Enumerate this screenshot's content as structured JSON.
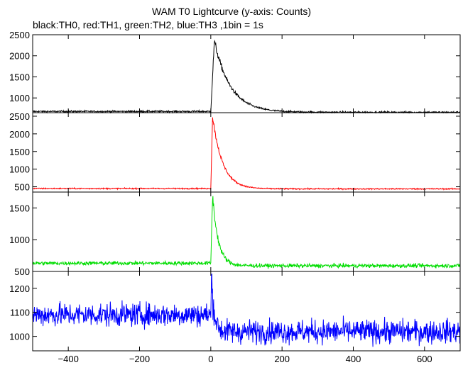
{
  "title": "WAM T0 Lightcurve (y-axis: Counts)",
  "subtitle": "black:TH0, red:TH1, green:TH2, blue:TH3 ,1bin = 1s",
  "chart_data": {
    "type": "line",
    "xlim": [
      -500,
      700
    ],
    "x_ticks": [
      -400,
      -200,
      0,
      200,
      400,
      600
    ],
    "x_tick_labels": [
      "−400",
      "−200",
      "0",
      "200",
      "400",
      "600"
    ],
    "bin_seconds": 1,
    "grid": false,
    "panels": [
      {
        "series": "TH0",
        "color": "#000000",
        "ylim": [
          650,
          2500
        ],
        "y_ticks": [
          1000,
          1500,
          2000,
          2500
        ],
        "y_tick_labels": [
          "1000",
          "1500",
          "2000",
          "2500"
        ],
        "profile": {
          "pre_level": 680,
          "post_level": 660,
          "peak": 2350,
          "peak_time": 10,
          "rise_seconds": 10,
          "decay_tau": 45,
          "noise": 15
        }
      },
      {
        "series": "TH1",
        "color": "#ff0000",
        "ylim": [
          350,
          2600
        ],
        "y_ticks": [
          500,
          1000,
          1500,
          2000,
          2500
        ],
        "y_tick_labels": [
          "500",
          "1000",
          "1500",
          "2000",
          "2500"
        ],
        "profile": {
          "pre_level": 450,
          "post_level": 440,
          "peak": 2500,
          "peak_time": 5,
          "rise_seconds": 5,
          "decay_tau": 28,
          "noise": 12
        }
      },
      {
        "series": "TH2",
        "color": "#00dd00",
        "ylim": [
          500,
          1750
        ],
        "y_ticks": [
          500,
          1000,
          1500
        ],
        "y_tick_labels": [
          "500",
          "1000",
          "1500"
        ],
        "profile": {
          "pre_level": 630,
          "post_level": 590,
          "peak": 1700,
          "peak_time": 5,
          "rise_seconds": 5,
          "decay_tau": 16,
          "noise": 22
        }
      },
      {
        "series": "TH3",
        "color": "#0000ff",
        "ylim": [
          940,
          1270
        ],
        "y_ticks": [
          1000,
          1100,
          1200
        ],
        "y_tick_labels": [
          "1000",
          "1100",
          "1200"
        ],
        "profile": {
          "pre_level": 1090,
          "post_level": 1020,
          "peak": 1240,
          "peak_time": 2,
          "rise_seconds": 2,
          "decay_tau": 8,
          "noise": 35
        }
      }
    ]
  }
}
